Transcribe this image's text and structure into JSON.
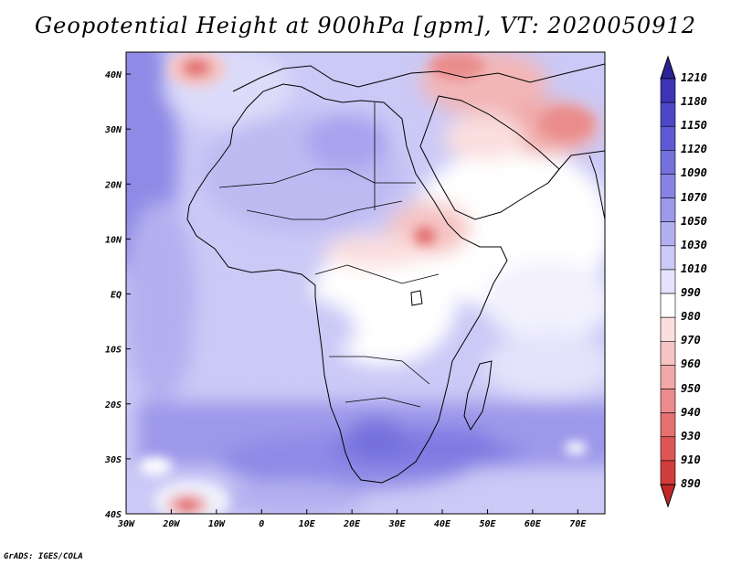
{
  "title": "Geopotential Height at 900hPa [gpm], VT: 2020050912",
  "credit": "GrADS: IGES/COLA",
  "map": {
    "lon_range": [
      -30,
      76
    ],
    "lat_range": [
      -40,
      44
    ],
    "lon_ticks": [
      {
        "value": -30,
        "label": "30W"
      },
      {
        "value": -20,
        "label": "20W"
      },
      {
        "value": -10,
        "label": "10W"
      },
      {
        "value": 0,
        "label": "0"
      },
      {
        "value": 10,
        "label": "10E"
      },
      {
        "value": 20,
        "label": "20E"
      },
      {
        "value": 30,
        "label": "30E"
      },
      {
        "value": 40,
        "label": "40E"
      },
      {
        "value": 50,
        "label": "50E"
      },
      {
        "value": 60,
        "label": "60E"
      },
      {
        "value": 70,
        "label": "70E"
      }
    ],
    "lat_ticks": [
      {
        "value": 40,
        "label": "40N"
      },
      {
        "value": 30,
        "label": "30N"
      },
      {
        "value": 20,
        "label": "20N"
      },
      {
        "value": 10,
        "label": "10N"
      },
      {
        "value": 0,
        "label": "EQ"
      },
      {
        "value": -10,
        "label": "10S"
      },
      {
        "value": -20,
        "label": "20S"
      },
      {
        "value": -30,
        "label": "30S"
      },
      {
        "value": -40,
        "label": "40S"
      }
    ]
  },
  "colorbar": {
    "labels": [
      "1210",
      "1180",
      "1150",
      "1120",
      "1090",
      "1070",
      "1050",
      "1030",
      "1010",
      "990",
      "980",
      "970",
      "960",
      "950",
      "940",
      "930",
      "910",
      "890"
    ],
    "colors": [
      "#2c2296",
      "#3c34b4",
      "#4d47c8",
      "#5f5ad4",
      "#7470dc",
      "#8783e4",
      "#9c98ea",
      "#b3b0f0",
      "#cbc9f6",
      "#e4e3fb",
      "#ffffff",
      "#fbdede",
      "#f6c4c4",
      "#f0a8a8",
      "#ea8c8c",
      "#e47070",
      "#dc5656",
      "#d13c3c",
      "#c22828"
    ]
  }
}
